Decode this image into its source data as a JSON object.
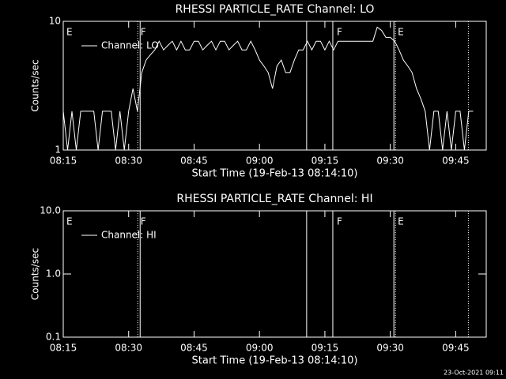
{
  "chart_data": [
    {
      "type": "line",
      "title": "RHESSI PARTICLE_RATE Channel: LO",
      "xlabel": "Start Time (19-Feb-13 08:14:10)",
      "ylabel": "Counts/sec",
      "log_y": true,
      "ylim": [
        1,
        10
      ],
      "yticks": [
        1,
        10
      ],
      "xlim": [
        "08:15",
        "09:52"
      ],
      "xticks": [
        "08:15",
        "08:30",
        "08:45",
        "09:00",
        "09:15",
        "09:30",
        "09:45"
      ],
      "x": [
        "08:15",
        "08:16",
        "08:17",
        "08:18",
        "08:19",
        "08:20",
        "08:21",
        "08:22",
        "08:23",
        "08:24",
        "08:25",
        "08:26",
        "08:27",
        "08:28",
        "08:29",
        "08:30",
        "08:31",
        "08:32",
        "08:33",
        "08:34",
        "08:35",
        "08:36",
        "08:37",
        "08:38",
        "08:39",
        "08:40",
        "08:41",
        "08:42",
        "08:43",
        "08:44",
        "08:45",
        "08:46",
        "08:47",
        "08:48",
        "08:49",
        "08:50",
        "08:51",
        "08:52",
        "08:53",
        "08:54",
        "08:55",
        "08:56",
        "08:57",
        "08:58",
        "08:59",
        "09:00",
        "09:01",
        "09:02",
        "09:03",
        "09:04",
        "09:05",
        "09:06",
        "09:07",
        "09:08",
        "09:09",
        "09:10",
        "09:11",
        "09:12",
        "09:13",
        "09:14",
        "09:15",
        "09:16",
        "09:17",
        "09:18",
        "09:19",
        "09:20",
        "09:21",
        "09:22",
        "09:23",
        "09:24",
        "09:25",
        "09:26",
        "09:27",
        "09:28",
        "09:29",
        "09:30",
        "09:31",
        "09:32",
        "09:33",
        "09:34",
        "09:35",
        "09:36",
        "09:37",
        "09:38",
        "09:39",
        "09:40",
        "09:41",
        "09:42",
        "09:43",
        "09:44",
        "09:45",
        "09:46",
        "09:47",
        "09:48",
        "09:49"
      ],
      "series": [
        {
          "name": "Channel: LO",
          "color": "#ffffff",
          "values": [
            2,
            1,
            2,
            1,
            2,
            2,
            2,
            2,
            1,
            2,
            2,
            2,
            1,
            2,
            1,
            2,
            3,
            2,
            4,
            5,
            5.5,
            6,
            7,
            6,
            6.5,
            7,
            6,
            7,
            6,
            6,
            7,
            7,
            6,
            6.5,
            7,
            6,
            7,
            7,
            6,
            6.5,
            7,
            6,
            6,
            7,
            6,
            5,
            4.5,
            4,
            3,
            4.5,
            5,
            4,
            4,
            5,
            6,
            6,
            7,
            6,
            7,
            7,
            6,
            7,
            6,
            7,
            7,
            7,
            7,
            7,
            7,
            7,
            7,
            7,
            9,
            8.5,
            7.5,
            7.5,
            7,
            6,
            5,
            4.5,
            4,
            3,
            2.5,
            2,
            1,
            2,
            2,
            1,
            2,
            1,
            2,
            2,
            1,
            2,
            2
          ]
        }
      ],
      "vlines": [
        {
          "x": "08:32:05",
          "style": "dotted"
        },
        {
          "x": "08:32:38",
          "style": "solid"
        },
        {
          "x": "09:10:49",
          "style": "solid"
        },
        {
          "x": "09:16:49",
          "style": "solid"
        },
        {
          "x": "09:30:49",
          "style": "solid"
        },
        {
          "x": "09:31:11",
          "style": "dotted"
        },
        {
          "x": "09:47:54",
          "style": "dotted"
        }
      ],
      "events": [
        {
          "x": "08:15",
          "label": "E"
        },
        {
          "x": "08:32",
          "label": "F"
        },
        {
          "x": "09:17",
          "label": "F"
        },
        {
          "x": "09:31",
          "label": "E"
        }
      ]
    },
    {
      "type": "line",
      "title": "RHESSI PARTICLE_RATE Channel: HI",
      "xlabel": "Start Time (19-Feb-13 08:14:10)",
      "ylabel": "Counts/sec",
      "log_y": true,
      "ylim": [
        0.1,
        10
      ],
      "yticks": [
        {
          "value": 0.1,
          "label": "0.1"
        },
        {
          "value": 1,
          "label": "1.0"
        },
        {
          "value": 10,
          "label": "10.0"
        }
      ],
      "xlim": [
        "08:15",
        "09:52"
      ],
      "xticks": [
        "08:15",
        "08:30",
        "08:45",
        "09:00",
        "09:15",
        "09:30",
        "09:45"
      ],
      "x": [],
      "series": [
        {
          "name": "Channel: HI",
          "color": "#ffffff",
          "values": []
        }
      ],
      "vlines": [
        {
          "x": "08:32:05",
          "style": "dotted"
        },
        {
          "x": "08:32:38",
          "style": "solid"
        },
        {
          "x": "09:10:49",
          "style": "solid"
        },
        {
          "x": "09:16:49",
          "style": "solid"
        },
        {
          "x": "09:30:49",
          "style": "solid"
        },
        {
          "x": "09:31:11",
          "style": "dotted"
        },
        {
          "x": "09:47:54",
          "style": "dotted"
        }
      ],
      "events": [
        {
          "x": "08:15",
          "label": "E"
        },
        {
          "x": "08:32",
          "label": "F"
        },
        {
          "x": "09:17",
          "label": "F"
        },
        {
          "x": "09:31",
          "label": "E"
        }
      ]
    }
  ],
  "footer": "23-Oct-2021 09:11"
}
